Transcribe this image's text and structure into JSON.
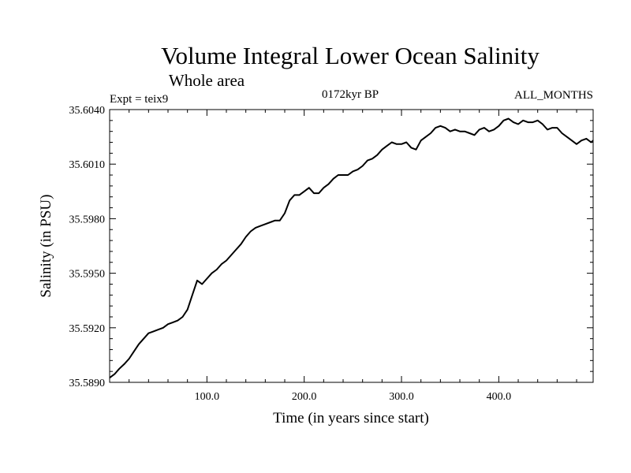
{
  "chart_data": {
    "type": "line",
    "title": "Volume Integral Lower Ocean Salinity",
    "subtitle": "Whole area",
    "expt_label": "Expt = teix9",
    "period_label": "0172kyr BP",
    "months_label": "ALL_MONTHS",
    "xlabel": "Time (in years since start)",
    "ylabel": "Salinity (in PSU)",
    "xlim": [
      0,
      497
    ],
    "ylim": [
      35.589,
      35.604
    ],
    "xticks": [
      100,
      200,
      300,
      400
    ],
    "xtick_labels": [
      "100.0",
      "200.0",
      "300.0",
      "400.0"
    ],
    "yticks": [
      35.589,
      35.592,
      35.595,
      35.598,
      35.601,
      35.604
    ],
    "ytick_labels": [
      "35.5890",
      "35.5920",
      "35.5950",
      "35.5980",
      "35.6010",
      "35.6040"
    ],
    "grid": false,
    "series": [
      {
        "x": [
          0,
          5,
          10,
          15,
          20,
          25,
          30,
          35,
          40,
          45,
          50,
          55,
          60,
          65,
          70,
          75,
          80,
          85,
          90,
          95,
          100,
          105,
          110,
          115,
          120,
          125,
          130,
          135,
          140,
          145,
          150,
          155,
          160,
          165,
          170,
          175,
          180,
          185,
          190,
          195,
          200,
          205,
          210,
          215,
          220,
          225,
          230,
          235,
          240,
          245,
          250,
          255,
          260,
          265,
          270,
          275,
          280,
          285,
          290,
          295,
          300,
          305,
          310,
          315,
          320,
          325,
          330,
          335,
          340,
          345,
          350,
          355,
          360,
          365,
          370,
          375,
          380,
          385,
          390,
          395,
          400,
          405,
          410,
          415,
          420,
          425,
          430,
          435,
          440,
          445,
          450,
          455,
          460,
          465,
          470,
          475,
          480,
          485,
          490,
          495,
          497
        ],
        "y": [
          35.58925,
          35.58945,
          35.58975,
          35.59,
          35.5903,
          35.5907,
          35.5911,
          35.5914,
          35.5917,
          35.5918,
          35.5919,
          35.592,
          35.5922,
          35.5923,
          35.5924,
          35.5926,
          35.593,
          35.5938,
          35.5946,
          35.5944,
          35.5947,
          35.595,
          35.5952,
          35.5955,
          35.5957,
          35.596,
          35.5963,
          35.5966,
          35.597,
          35.5973,
          35.5975,
          35.5976,
          35.5977,
          35.5978,
          35.5979,
          35.5979,
          35.5983,
          35.599,
          35.5993,
          35.5993,
          35.5995,
          35.5997,
          35.5994,
          35.5994,
          35.5997,
          35.5999,
          35.6002,
          35.6004,
          35.6004,
          35.6004,
          35.6006,
          35.6007,
          35.6009,
          35.6012,
          35.6013,
          35.6015,
          35.6018,
          35.602,
          35.6022,
          35.6021,
          35.6021,
          35.6022,
          35.6019,
          35.6018,
          35.6023,
          35.6025,
          35.6027,
          35.603,
          35.6031,
          35.603,
          35.6028,
          35.6029,
          35.6028,
          35.6028,
          35.6027,
          35.6026,
          35.6029,
          35.603,
          35.6028,
          35.6029,
          35.6031,
          35.6034,
          35.6035,
          35.6033,
          35.6032,
          35.6034,
          35.6033,
          35.6033,
          35.6034,
          35.6032,
          35.6029,
          35.603,
          35.603,
          35.6027,
          35.6025,
          35.6023,
          35.6021,
          35.6023,
          35.6024,
          35.6022,
          35.6023
        ]
      }
    ]
  }
}
